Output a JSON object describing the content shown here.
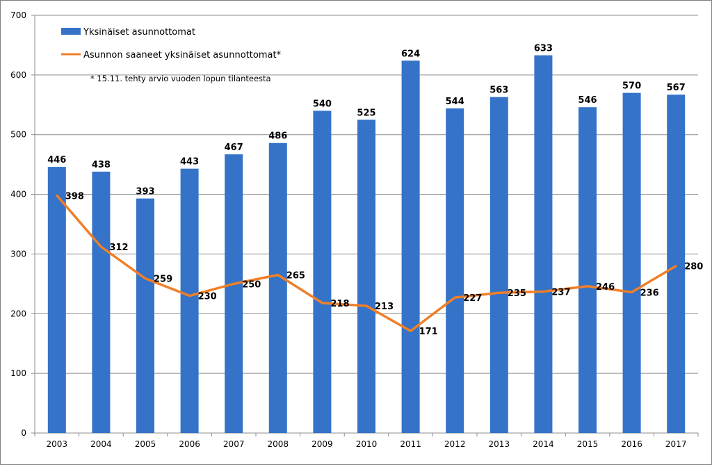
{
  "chart_data": {
    "type": "bar",
    "categories": [
      "2003",
      "2004",
      "2005",
      "2006",
      "2007",
      "2008",
      "2009",
      "2010",
      "2011",
      "2012",
      "2013",
      "2014",
      "2015",
      "2016",
      "2017"
    ],
    "series": [
      {
        "name": "Yksinäiset asunnottomat",
        "type": "bar",
        "color": "#3473c8",
        "values": [
          446,
          438,
          393,
          443,
          467,
          486,
          540,
          525,
          624,
          544,
          563,
          633,
          546,
          570,
          567
        ]
      },
      {
        "name": "Asunnon saaneet yksinäiset asunnottomat*",
        "type": "line",
        "color": "#f07f27",
        "values": [
          398,
          312,
          259,
          230,
          250,
          265,
          218,
          213,
          171,
          227,
          235,
          237,
          246,
          236,
          280
        ]
      }
    ],
    "ylim": [
      0,
      700
    ],
    "yticks": [
      0,
      100,
      200,
      300,
      400,
      500,
      600,
      700
    ],
    "grid": "horizontal",
    "legend": "top-left",
    "note": "* 15.11. tehty arvio vuoden lopun tilanteesta"
  }
}
